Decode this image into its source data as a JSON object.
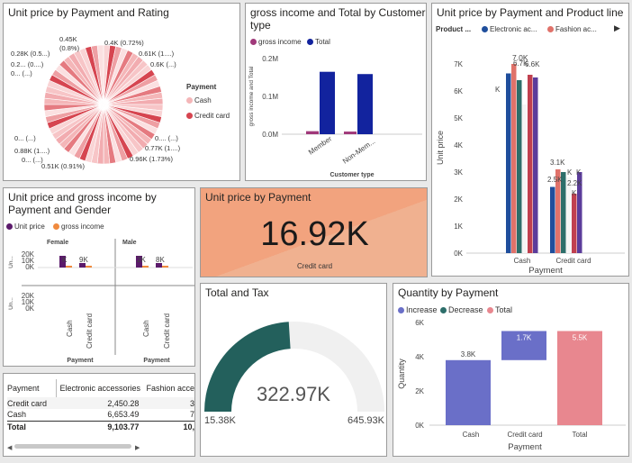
{
  "pie": {
    "title": "Unit price by Payment and Rating",
    "legend_title": "Payment",
    "legend": [
      {
        "label": "Cash",
        "color": "#f4b6b8"
      },
      {
        "label": "Credit card",
        "color": "#d64550"
      }
    ],
    "labels": [
      "0.45K",
      "(0.8%)",
      "0.4K (0.72%)",
      "0.28K (0.5...)",
      "0.61K (1....)",
      "0.2... (0....)",
      "0.6K (...)",
      "0... (...)",
      "0.... (...)",
      "0... (...)",
      "0.77K (1....)",
      "0.88K (1....)",
      "0.96K (1.73%)",
      "0... (...)",
      "0.51K (0.91%)"
    ]
  },
  "gross": {
    "title": "gross income and Total by Customer type",
    "legend": [
      {
        "label": "gross income",
        "color": "#a0397a"
      },
      {
        "label": "Total",
        "color": "#12239e"
      }
    ],
    "ylabel": "gross income and Total",
    "xlabel": "Customer type",
    "ticks": [
      "0.2M",
      "0.1M",
      "0.0M"
    ]
  },
  "product": {
    "title": "Unit price by Payment and Product line",
    "legend_title": "Product ...",
    "legend": [
      {
        "label": "Electronic ac...",
        "color": "#1f4e9c"
      },
      {
        "label": "Fashion ac...",
        "color": "#e0726a"
      }
    ],
    "ylabel": "Unit price",
    "xlabel": "Payment",
    "ticks": [
      "7K",
      "6K",
      "5K",
      "4K",
      "3K",
      "2K",
      "1K",
      "0K"
    ],
    "top_labels": [
      "6.7K",
      "7.0K",
      "6.6K",
      "2.5K",
      "3.1K",
      "2.2K"
    ],
    "extra_labels": [
      "K",
      "K",
      "K",
      "K"
    ]
  },
  "gender": {
    "title": "Unit price and gross income by Payment and Gender",
    "legend": [
      {
        "label": "Unit price",
        "color": "#5b1a6b"
      },
      {
        "label": "gross income",
        "color": "#f08a3e"
      }
    ],
    "panels": [
      "Female",
      "Male"
    ],
    "yaxis_short": "Un...",
    "ticks": [
      "20K",
      "10K",
      "0K"
    ],
    "bar_labels": [
      "K",
      "9K",
      "2K",
      "8K"
    ],
    "xlabel": "Payment"
  },
  "kpi": {
    "title": "Unit price by Payment",
    "value": "16.92K",
    "caption": "Credit card"
  },
  "gauge": {
    "title": "Total and Tax",
    "value": "322.97K",
    "min": "15.38K",
    "max": "645.93K",
    "fraction": 0.48
  },
  "table": {
    "headers": [
      "Payment",
      "Electronic accessories",
      "Fashion acce"
    ],
    "rows": [
      [
        "Credit card",
        "2,450.28",
        "3"
      ],
      [
        "Cash",
        "6,653.49",
        "7"
      ]
    ],
    "total": [
      "Total",
      "9,103.77",
      "10,"
    ]
  },
  "waterfall": {
    "title": "Quantity by Payment",
    "legend": [
      {
        "label": "Increase",
        "color": "#6a6fc8"
      },
      {
        "label": "Decrease",
        "color": "#2d6e6a"
      },
      {
        "label": "Total",
        "color": "#e8878f"
      }
    ],
    "ylabel": "Quantity",
    "xlabel": "Payment",
    "ticks": [
      "6K",
      "4K",
      "2K",
      "0K"
    ]
  },
  "chart_data": [
    {
      "type": "bar",
      "title": "gross income and Total by Customer type",
      "categories": [
        "Member",
        "Non-Mem..."
      ],
      "series": [
        {
          "name": "gross income",
          "values": [
            0.008,
            0.007
          ]
        },
        {
          "name": "Total",
          "values": [
            0.165,
            0.159
          ]
        }
      ],
      "xlabel": "Customer type",
      "ylabel": "gross income and Total",
      "ylim": [
        0,
        0.2
      ]
    },
    {
      "type": "bar",
      "title": "Unit price by Payment and Product line",
      "categories": [
        "Cash",
        "Credit card"
      ],
      "series": [
        {
          "name": "Electronic ac...",
          "values": [
            6.65,
            2.45
          ]
        },
        {
          "name": "Fashion ac...",
          "values": [
            7.0,
            3.1
          ]
        },
        {
          "values": [
            6.4,
            3.0
          ]
        },
        {
          "values": [
            5.5,
            2.8
          ]
        },
        {
          "values": [
            6.6,
            2.2
          ]
        },
        {
          "values": [
            6.5,
            3.0
          ]
        }
      ],
      "xlabel": "Payment",
      "ylabel": "Unit price",
      "ylim": [
        0,
        7.5
      ]
    },
    {
      "type": "bar",
      "title": "Quantity by Payment",
      "categories": [
        "Cash",
        "Credit card",
        "Total"
      ],
      "values": [
        3.8,
        1.7,
        5.5
      ],
      "value_labels": [
        "3.8K",
        "1.7K",
        "5.5K"
      ],
      "xlabel": "Payment",
      "ylabel": "Quantity",
      "ylim": [
        0,
        6
      ]
    }
  ]
}
